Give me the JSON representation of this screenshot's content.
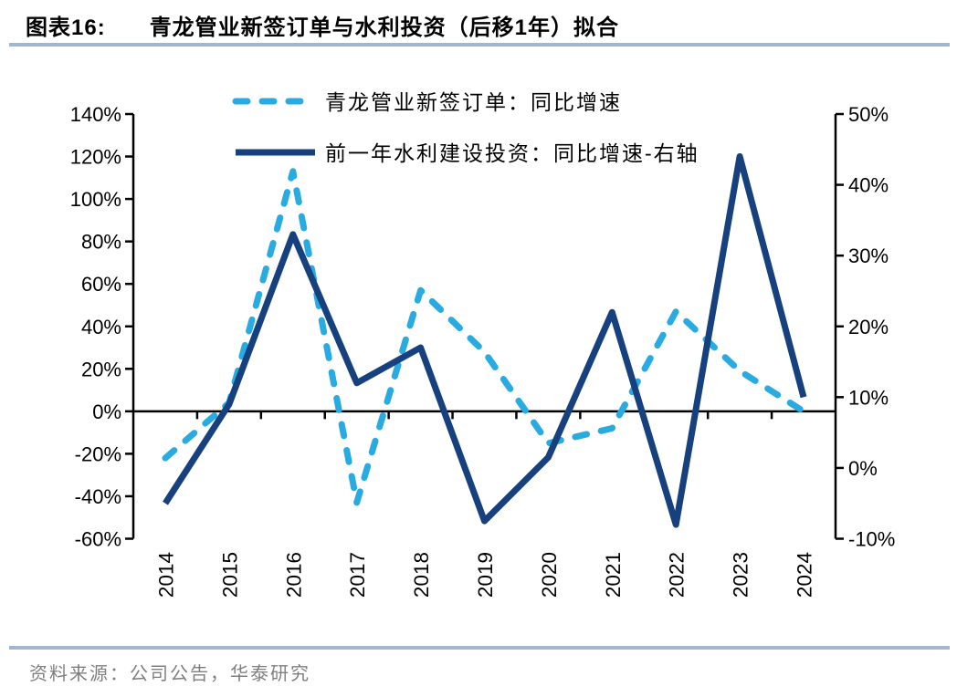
{
  "header": {
    "figure_label": "图表16:",
    "title": "青龙管业新签订单与水利投资（后移1年）拟合"
  },
  "chart_data": {
    "type": "line",
    "title": "青龙管业新签订单与水利投资（后移1年）拟合",
    "categories": [
      "2014",
      "2015",
      "2016",
      "2017",
      "2018",
      "2019",
      "2020",
      "2021",
      "2022",
      "2023",
      "2024"
    ],
    "series": [
      {
        "name": "青龙管业新签订单：同比增速",
        "axis": "left",
        "line_style": "dashed",
        "color": "#29ABE2",
        "values": [
          -22,
          4,
          113,
          -43,
          57,
          28,
          -15,
          -8,
          47,
          19,
          0
        ]
      },
      {
        "name": "前一年水利建设投资：同比增速-右轴",
        "axis": "right",
        "line_style": "solid",
        "color": "#16407E",
        "values": [
          -5,
          9,
          33,
          12,
          17,
          -7.5,
          1.5,
          22,
          -8,
          44,
          10
        ]
      }
    ],
    "left_axis": {
      "min": -60,
      "max": 140,
      "step": 20,
      "unit": "%",
      "tick_labels": [
        "140%",
        "120%",
        "100%",
        "80%",
        "60%",
        "40%",
        "20%",
        "0%",
        "-20%",
        "-40%",
        "-60%"
      ]
    },
    "right_axis": {
      "min": -10,
      "max": 50,
      "step": 10,
      "unit": "%",
      "tick_labels": [
        "50%",
        "40%",
        "30%",
        "20%",
        "10%",
        "0%",
        "-10%"
      ]
    },
    "x_axis": {
      "labels_rotation_degrees": -90
    },
    "legend_position": "top-center",
    "grid": false
  },
  "footer": {
    "source": "资料来源：公司公告，华泰研究"
  },
  "style": {
    "accent_rule_color": "#A3B7CC",
    "source_text_color": "#7F7F7F",
    "axis_color": "#000000",
    "background": "#FFFFFF"
  }
}
